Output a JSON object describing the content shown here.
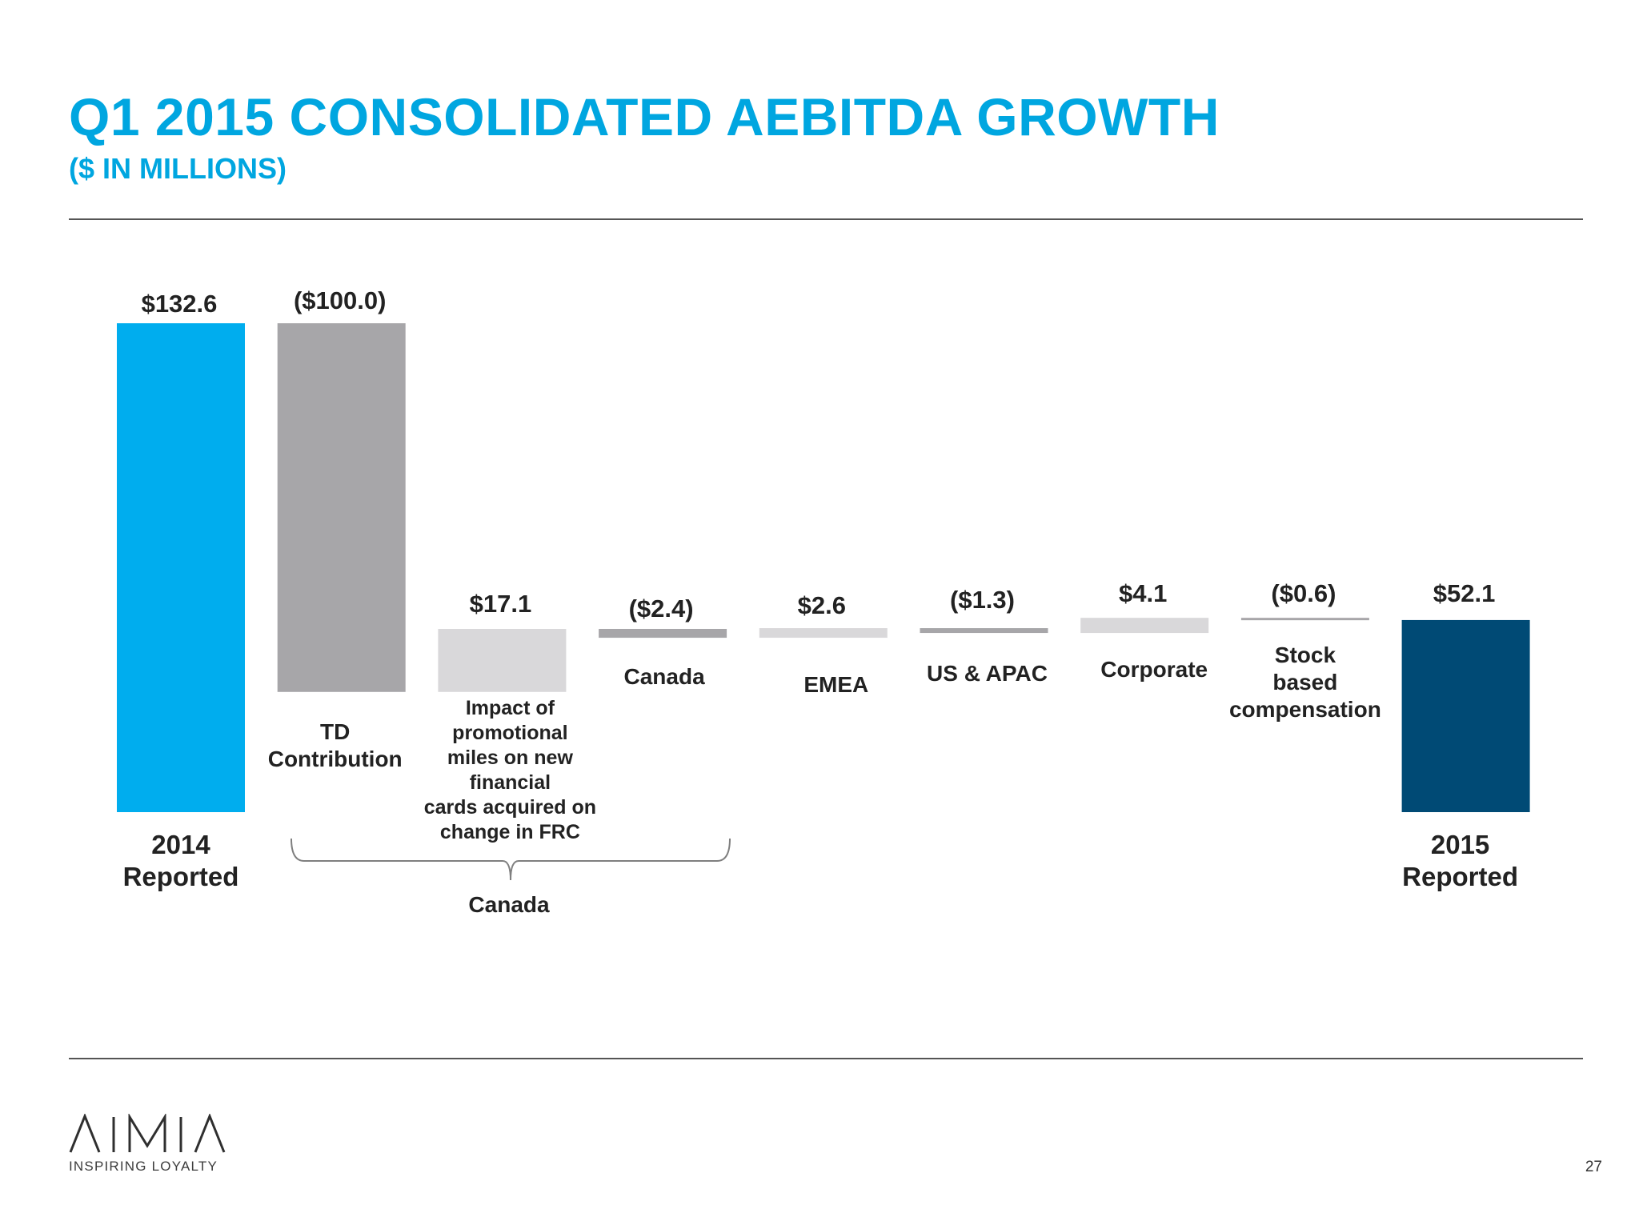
{
  "title": "Q1 2015 CONSOLIDATED AEBITDA GROWTH",
  "subtitle": "($ IN MILLIONS)",
  "logo": {
    "name": "AIMIA",
    "tagline": "INSPIRING LOYALTY"
  },
  "page_number": "27",
  "chart_data": {
    "type": "bar",
    "subtype": "waterfall",
    "unit": "$ millions",
    "ylim": [
      0,
      132.6
    ],
    "grid": false,
    "categories": [
      "2014 Reported",
      "TD Contribution",
      "Impact of promotional miles on new financial cards acquired on change in FRC",
      "Canada",
      "EMEA",
      "US & APAC",
      "Corporate",
      "Stock based compensation",
      "2015 Reported"
    ],
    "values": [
      132.6,
      -100.0,
      17.1,
      -2.4,
      2.6,
      -1.3,
      4.1,
      -0.6,
      52.1
    ],
    "bar_kind": [
      "total",
      "delta",
      "delta",
      "delta",
      "delta",
      "delta",
      "delta",
      "delta",
      "total"
    ],
    "value_labels": [
      "$132.6",
      "($100.0)",
      "$17.1",
      "($2.4)",
      "$2.6",
      "($1.3)",
      "$4.1",
      "($0.6)",
      "$52.1"
    ],
    "category_label_lines": [
      [
        "2014",
        "Reported"
      ],
      [
        "TD",
        "Contribution"
      ],
      [
        "Impact of",
        "promotional",
        "miles on new",
        "financial",
        "cards acquired  on",
        "change in FRC"
      ],
      [
        "Canada"
      ],
      [
        "EMEA"
      ],
      [
        "US & APAC"
      ],
      [
        "Corporate"
      ],
      [
        "Stock",
        "based",
        "compensation"
      ],
      [
        "2015",
        "Reported"
      ]
    ],
    "group_annotation": {
      "label": "Canada",
      "spans": [
        "TD Contribution",
        "Impact of promotional miles on new financial cards acquired on change in FRC",
        "Canada"
      ]
    },
    "colors": {
      "start_total": "#00adee",
      "end_total": "#004a75",
      "negative": "#a7a6a9",
      "positive": "#d9d8da",
      "text": "#222222",
      "bracket": "#7f7f7f"
    }
  }
}
